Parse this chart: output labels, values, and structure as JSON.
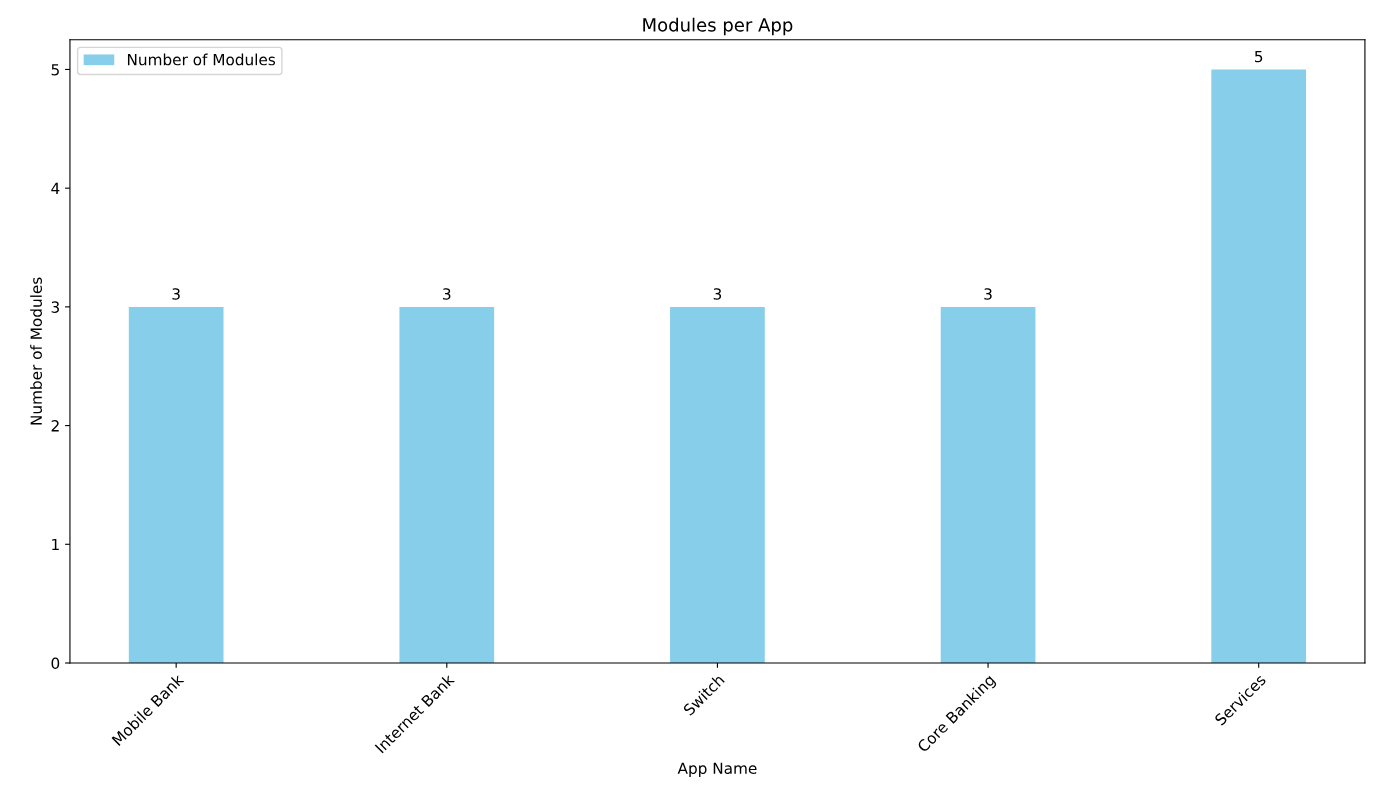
{
  "chart_data": {
    "type": "bar",
    "title": "Modules per App",
    "xlabel": "App Name",
    "ylabel": "Number of Modules",
    "categories": [
      "Mobile Bank",
      "Internet Bank",
      "Switch",
      "Core Banking",
      "Services"
    ],
    "series": [
      {
        "name": "Number of Modules",
        "color": "#87ceeb",
        "values": [
          3,
          3,
          3,
          3,
          5
        ]
      }
    ],
    "ylim": [
      0,
      5.25
    ],
    "yticks": [
      0,
      1,
      2,
      3,
      4,
      5
    ],
    "data_labels": true,
    "legend": "top left",
    "grid": false
  }
}
